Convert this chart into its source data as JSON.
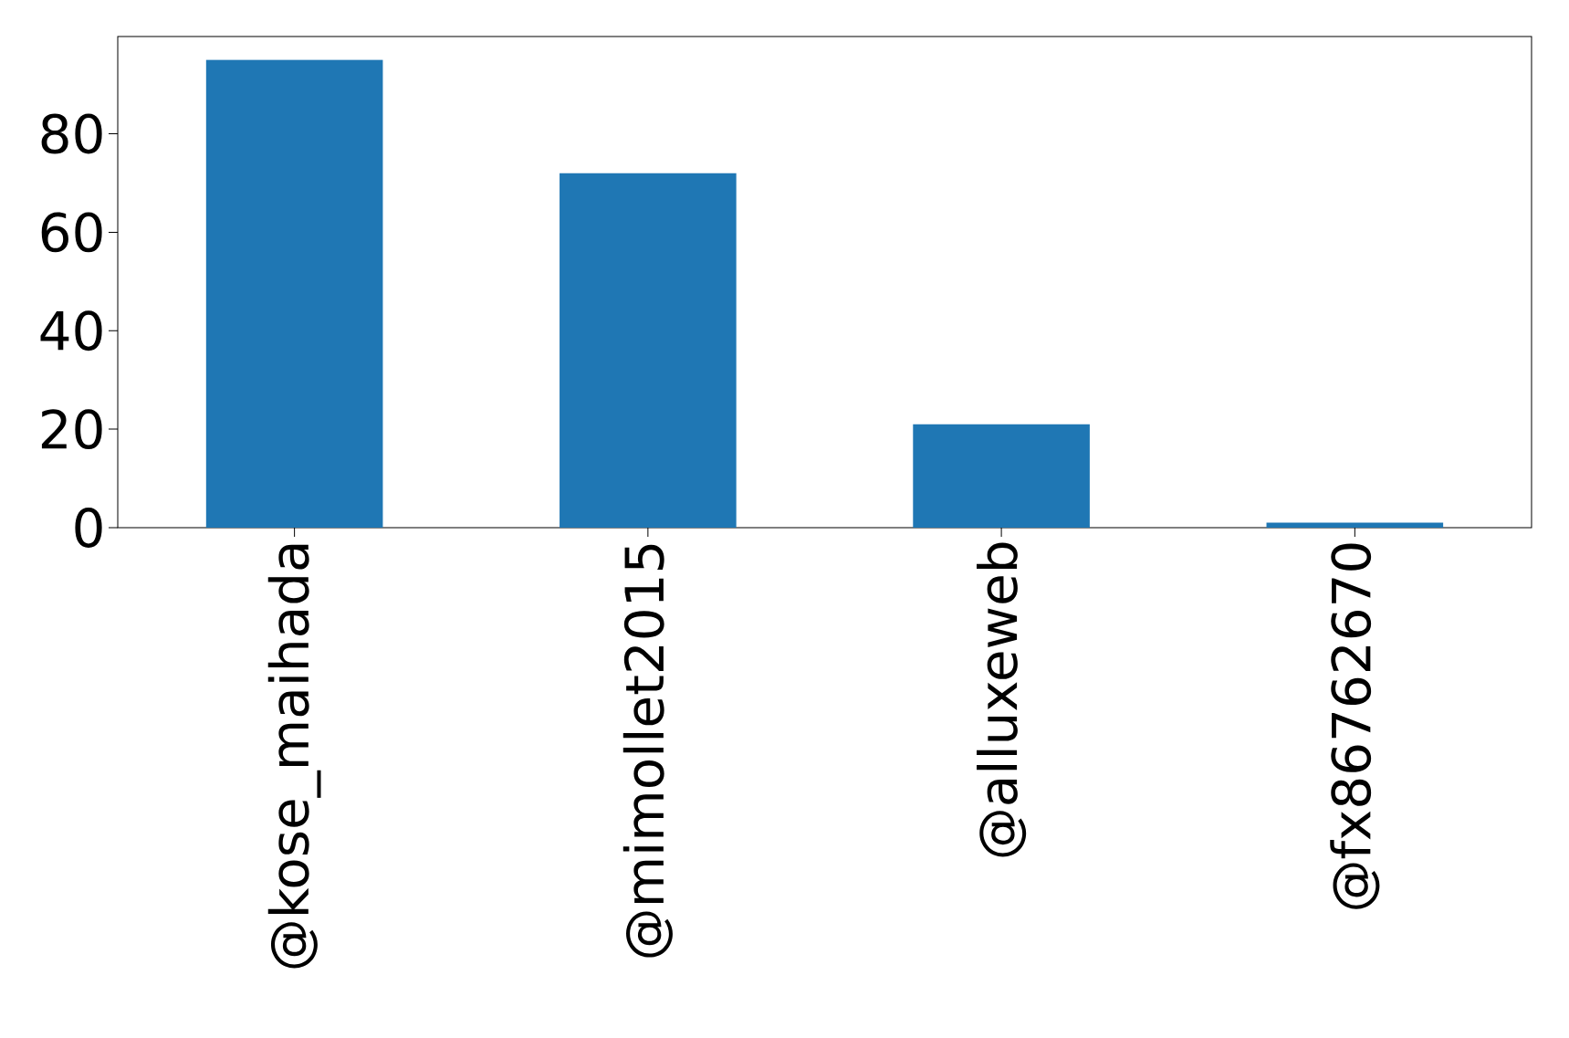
{
  "chart_data": {
    "type": "bar",
    "categories": [
      "@kose_maihada",
      "@mimollet2015",
      "@alluxeweb",
      "@fx86762670"
    ],
    "values": [
      95,
      72,
      21,
      1
    ],
    "color": "#1f77b4",
    "ylim": [
      0,
      99.75
    ],
    "yticks": [
      0,
      20,
      40,
      60,
      80
    ],
    "grid": false
  }
}
